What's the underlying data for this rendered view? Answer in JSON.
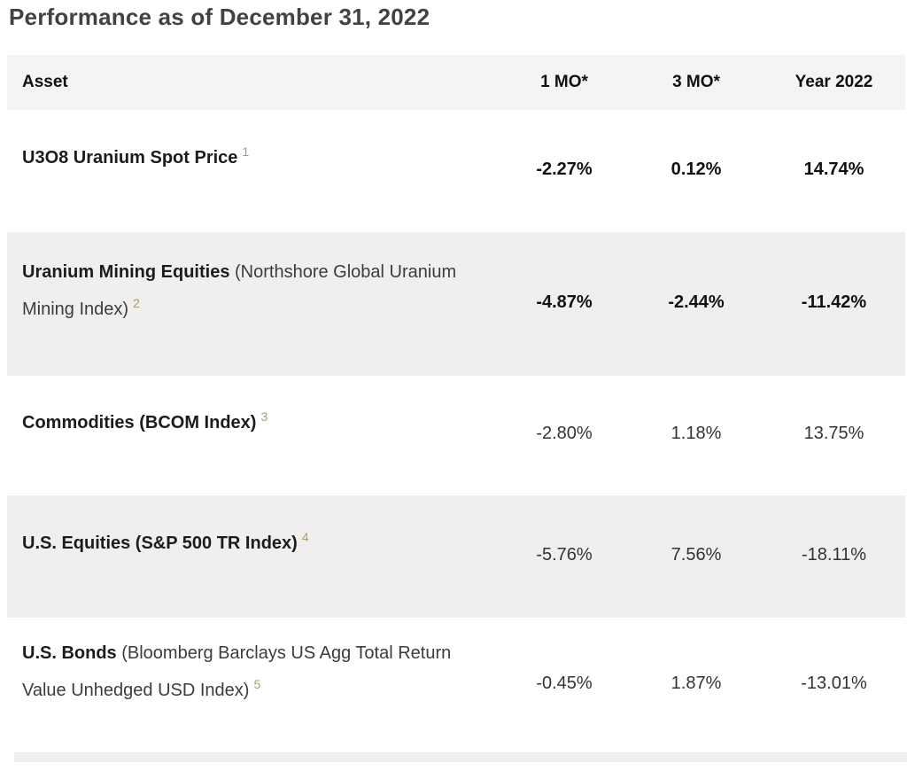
{
  "page": {
    "title": "Performance as of December 31, 2022"
  },
  "theme": {
    "header_bg": "#f5f4f4",
    "shaded_row_bg": "#f0efee",
    "footnote_accent": "#a69c6e",
    "title_color": "#424242"
  },
  "table": {
    "columns": [
      "Asset",
      "1 MO*",
      "3 MO*",
      "Year 2022"
    ],
    "rows": [
      {
        "asset_bold": "U3O8 Uranium Spot Price",
        "asset_regular": "",
        "footnote": "1",
        "values": [
          "-2.27%",
          "0.12%",
          "14.74%"
        ],
        "values_bold": true,
        "shaded": false
      },
      {
        "asset_bold": "Uranium Mining Equities",
        "asset_regular": " (Northshore Global Uranium Mining Index)",
        "footnote": "2",
        "values": [
          "-4.87%",
          "-2.44%",
          "-11.42%"
        ],
        "values_bold": true,
        "shaded": true
      },
      {
        "asset_bold": "Commodities (BCOM Index)",
        "asset_regular": "",
        "footnote": "3",
        "values": [
          "-2.80%",
          "1.18%",
          "13.75%"
        ],
        "values_bold": false,
        "shaded": false
      },
      {
        "asset_bold": "U.S. Equities (S&P 500 TR Index)",
        "asset_regular": "",
        "footnote": "4",
        "values": [
          "-5.76%",
          "7.56%",
          "-18.11%"
        ],
        "values_bold": false,
        "shaded": true
      },
      {
        "asset_bold": "U.S. Bonds",
        "asset_regular": "  (Bloomberg Barclays US Agg Total Return Value Unhedged USD Index)",
        "footnote": "5",
        "values": [
          "-0.45%",
          "1.87%",
          "-13.01%"
        ],
        "values_bold": false,
        "shaded": false
      }
    ]
  }
}
